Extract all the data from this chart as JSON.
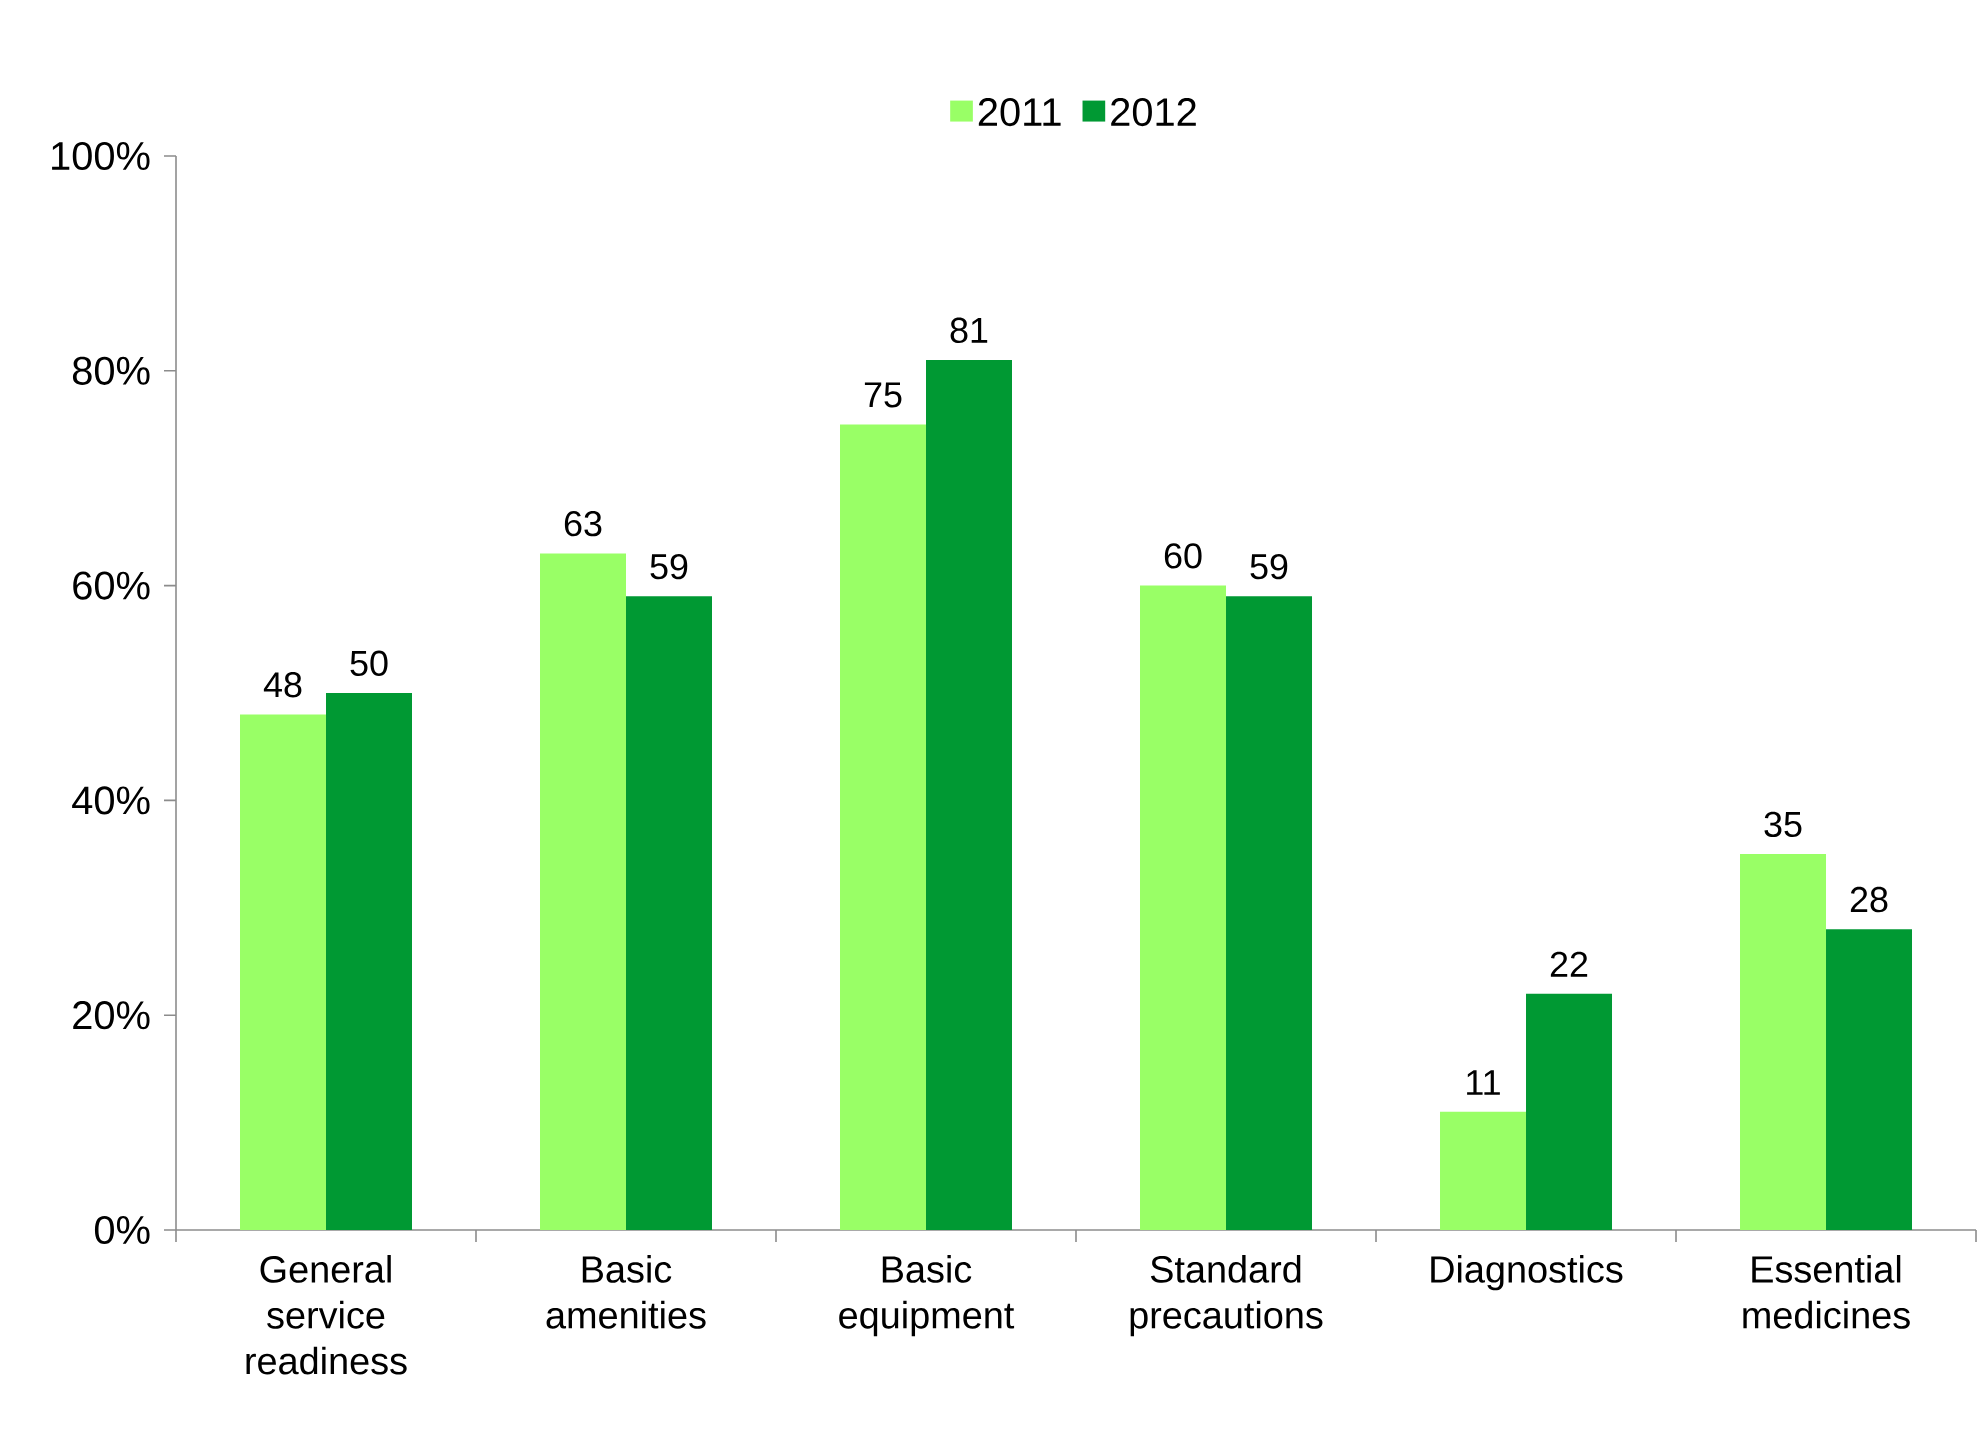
{
  "chart_data": {
    "type": "bar",
    "categories": [
      "General service readiness",
      "Basic amenities",
      "Basic equipment",
      "Standard precautions",
      "Diagnostics",
      "Essential medicines"
    ],
    "series": [
      {
        "name": "2011",
        "color": "#99ff66",
        "values": [
          48,
          63,
          75,
          60,
          11,
          35
        ]
      },
      {
        "name": "2012",
        "color": "#009933",
        "values": [
          50,
          59,
          81,
          59,
          22,
          28
        ]
      }
    ],
    "ylim": [
      0,
      100
    ],
    "yticks": [
      {
        "value": 0,
        "label": "0%"
      },
      {
        "value": 20,
        "label": "20%"
      },
      {
        "value": 40,
        "label": "40%"
      },
      {
        "value": 60,
        "label": "60%"
      },
      {
        "value": 80,
        "label": "80%"
      },
      {
        "value": 100,
        "label": "100%"
      }
    ],
    "data_labels": true,
    "grid": false,
    "legend": "top"
  }
}
